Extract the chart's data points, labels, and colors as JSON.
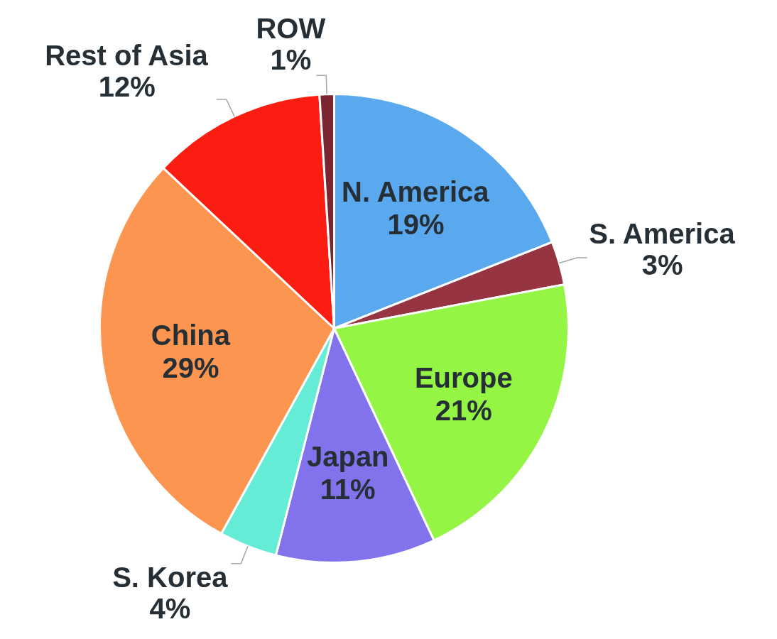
{
  "chart_data": {
    "type": "pie",
    "categories": [
      "N. America",
      "S. America",
      "Europe",
      "Japan",
      "S. Korea",
      "China",
      "Rest of Asia",
      "ROW"
    ],
    "values": [
      19,
      3,
      21,
      11,
      4,
      29,
      12,
      1
    ],
    "value_labels": [
      "19%",
      "3%",
      "21%",
      "11%",
      "4%",
      "29%",
      "12%",
      "1%"
    ],
    "colors": [
      "#5aa8ee",
      "#973442",
      "#94f545",
      "#8272ec",
      "#64ecd6",
      "#fc9550",
      "#fb1d12",
      "#7a2530"
    ]
  }
}
